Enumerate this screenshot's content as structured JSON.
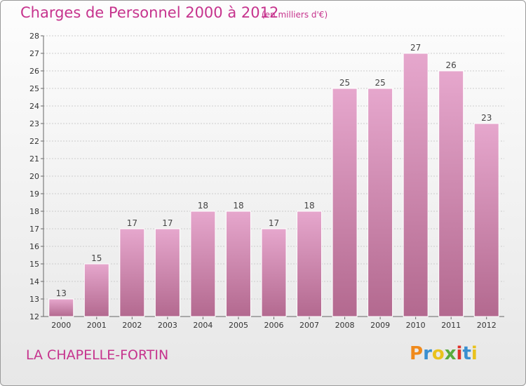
{
  "header": {
    "title": "Charges de Personnel 2000 à 2012",
    "subtitle": "(en milliers d'€)"
  },
  "footer": {
    "location": "LA CHAPELLE-FORTIN",
    "logo_text": "Proxiti"
  },
  "colors": {
    "accent": "#c6338d",
    "bar_top": "#e6a7cd",
    "bar_bottom": "#b3698f",
    "logo_letters": [
      "#f08a1c",
      "#3a8fd0",
      "#e9c21d",
      "#5aab3c",
      "#e0332a",
      "#3a8fd0",
      "#e9c21d"
    ]
  },
  "chart_data": {
    "type": "bar",
    "title": "Charges de Personnel 2000 à 2012",
    "subtitle": "(en milliers d'€)",
    "categories": [
      "2000",
      "2001",
      "2002",
      "2003",
      "2004",
      "2005",
      "2006",
      "2007",
      "2008",
      "2009",
      "2010",
      "2011",
      "2012"
    ],
    "values": [
      13,
      15,
      17,
      17,
      18,
      18,
      17,
      18,
      25,
      25,
      27,
      26,
      23
    ],
    "ylim": [
      12,
      28
    ],
    "yticks": [
      12,
      13,
      14,
      15,
      16,
      17,
      18,
      19,
      20,
      21,
      22,
      23,
      24,
      25,
      26,
      27,
      28
    ],
    "grid": true
  }
}
